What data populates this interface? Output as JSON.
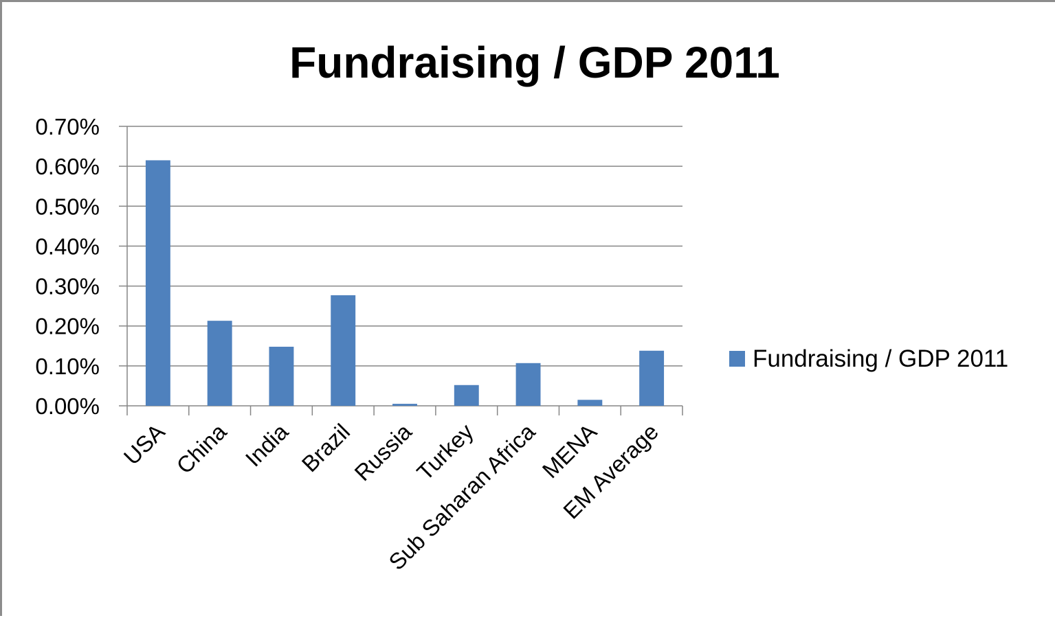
{
  "chart_data": {
    "type": "bar",
    "title": "Fundraising / GDP 2011",
    "xlabel": "",
    "ylabel": "",
    "categories": [
      "USA",
      "China",
      "India",
      "Brazil",
      "Russia",
      "Turkey",
      "Sub Saharan Africa",
      "MENA",
      "EM Average"
    ],
    "series": [
      {
        "name": "Fundraising / GDP 2011",
        "values": [
          0.615,
          0.213,
          0.148,
          0.277,
          0.005,
          0.052,
          0.107,
          0.015,
          0.138
        ],
        "color": "#4f81bd"
      }
    ],
    "y_ticks": [
      "0.00%",
      "0.10%",
      "0.20%",
      "0.30%",
      "0.40%",
      "0.50%",
      "0.60%",
      "0.70%"
    ],
    "ylim": [
      0,
      0.7
    ],
    "y_unit": "%",
    "grid": true,
    "legend_position": "right"
  }
}
